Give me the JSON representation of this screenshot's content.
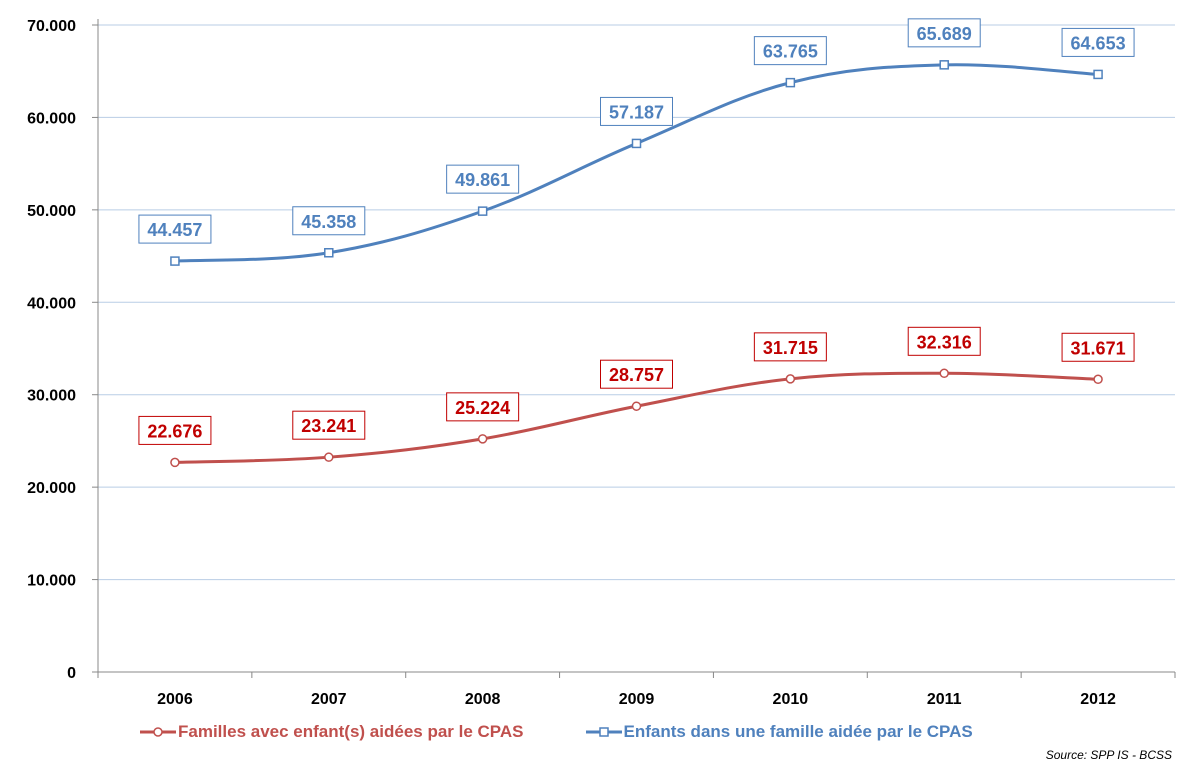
{
  "chart_data": {
    "type": "line",
    "categories": [
      "2006",
      "2007",
      "2008",
      "2009",
      "2010",
      "2011",
      "2012"
    ],
    "ylim": [
      0,
      70000
    ],
    "yticks": [
      0,
      10000,
      20000,
      30000,
      40000,
      50000,
      60000,
      70000
    ],
    "ytick_labels": [
      "0",
      "10.000",
      "20.000",
      "30.000",
      "40.000",
      "50.000",
      "60.000",
      "70.000"
    ],
    "grid": true,
    "legend_position": "bottom",
    "series": [
      {
        "name": "Familles avec enfant(s) aidées par le CPAS",
        "color": "#C0504D",
        "label_color": "#C00000",
        "marker": "circle",
        "values": [
          22676,
          23241,
          25224,
          28757,
          31715,
          32316,
          31671
        ],
        "labels": [
          "22.676",
          "23.241",
          "25.224",
          "28.757",
          "31.715",
          "32.316",
          "31.671"
        ]
      },
      {
        "name": "Enfants dans une famille aidée par le CPAS",
        "color": "#4F81BD",
        "label_color": "#4F81BD",
        "marker": "square",
        "values": [
          44457,
          45358,
          49861,
          57187,
          63765,
          65689,
          64653
        ],
        "labels": [
          "44.457",
          "45.358",
          "49.861",
          "57.187",
          "63.765",
          "65.689",
          "64.653"
        ]
      }
    ],
    "source": "Source: SPP IS - BCSS"
  }
}
